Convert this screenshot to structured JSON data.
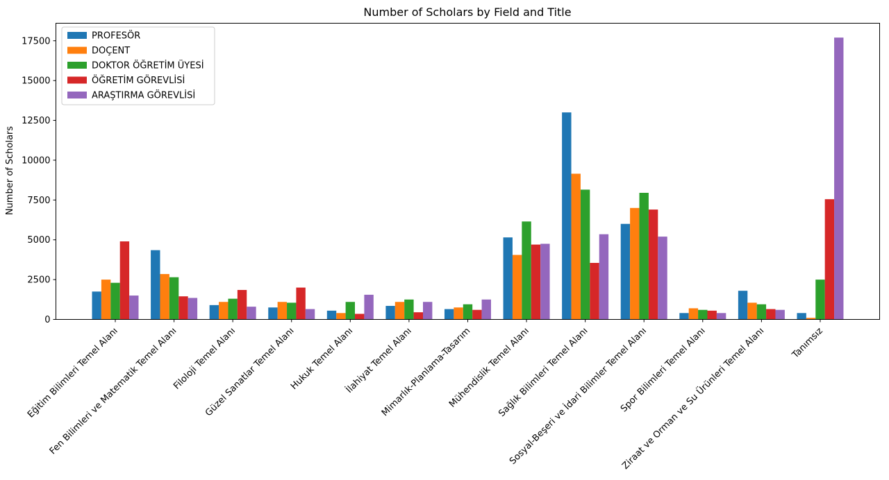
{
  "chart_data": {
    "type": "bar",
    "title": "Number of Scholars by Field and Title",
    "xlabel": "",
    "ylabel": "Number of Scholars",
    "ylim": [
      0,
      18600
    ],
    "yticks": [
      0,
      2500,
      5000,
      7500,
      10000,
      12500,
      15000,
      17500
    ],
    "grid": false,
    "legend_position": "top-left",
    "categories": [
      "Eğitim Bilimleri Temel Alanı",
      "Fen Bilimleri ve Matematik Temel Alanı",
      "Filoloji Temel Alanı",
      "Güzel Sanatlar Temel Alanı",
      "Hukuk Temel Alanı",
      "İlahiyat Temel Alanı",
      "Mimarlık-Planlama-Tasarım",
      "Mühendislik Temel Alanı",
      "Sağlık Bilimleri Temel Alanı",
      "Sosyal-Beşeri ve İdari Bilimler Temel Alanı",
      "Spor Bilimleri Temel Alanı",
      "Ziraat ve Orman ve Su Ürünleri Temel Alanı",
      "Tanımsız"
    ],
    "series": [
      {
        "name": "PROFESÖR",
        "color": "#1f77b4",
        "values": [
          1750,
          4350,
          900,
          750,
          550,
          850,
          650,
          5150,
          13000,
          6000,
          400,
          1800,
          400
        ]
      },
      {
        "name": "DOÇENT",
        "color": "#ff7f0e",
        "values": [
          2500,
          2850,
          1100,
          1100,
          400,
          1100,
          750,
          4050,
          9150,
          7000,
          700,
          1050,
          100
        ]
      },
      {
        "name": "DOKTOR ÖĞRETİM ÜYESİ",
        "color": "#2ca02c",
        "values": [
          2300,
          2650,
          1300,
          1050,
          1100,
          1250,
          950,
          6150,
          8150,
          7950,
          600,
          950,
          2500
        ]
      },
      {
        "name": "ÖĞRETİM GÖREVLİSİ",
        "color": "#d62728",
        "values": [
          4900,
          1450,
          1850,
          2000,
          350,
          450,
          600,
          4700,
          3550,
          6900,
          550,
          650,
          7550
        ]
      },
      {
        "name": "ARAŞTIRMA GÖREVLİSİ",
        "color": "#9467bd",
        "values": [
          1500,
          1350,
          800,
          650,
          1550,
          1100,
          1250,
          4750,
          5350,
          5200,
          400,
          600,
          17700
        ]
      }
    ]
  }
}
